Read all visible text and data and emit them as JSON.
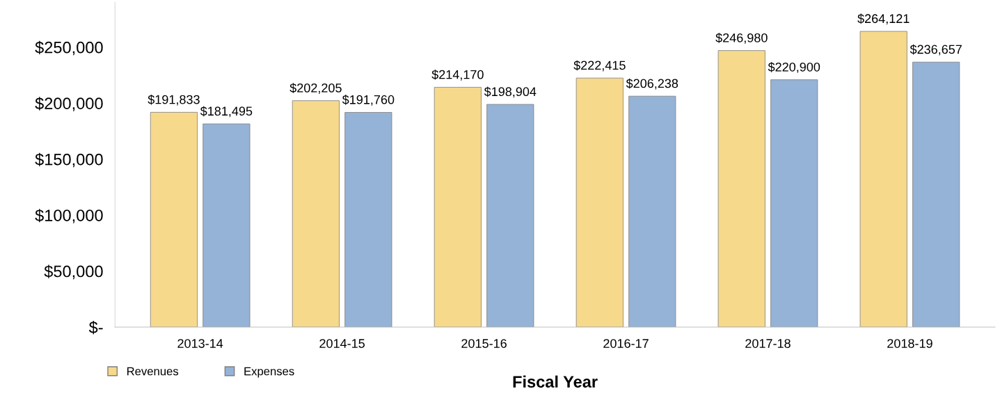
{
  "chart_data": {
    "type": "bar",
    "xlabel": "Fiscal Year",
    "categories": [
      "2013-14",
      "2014-15",
      "2015-16",
      "2016-17",
      "2017-18",
      "2018-19"
    ],
    "series": [
      {
        "name": "Revenues",
        "color": "#f7d98c",
        "values": [
          191833,
          202205,
          214170,
          222415,
          246980,
          264121
        ],
        "value_labels": [
          "$191,833",
          "$202,205",
          "$214,170",
          "$222,415",
          "$246,980",
          "$264,121"
        ]
      },
      {
        "name": "Expenses",
        "color": "#95b3d7",
        "values": [
          181495,
          191760,
          198904,
          206238,
          220900,
          236657
        ],
        "value_labels": [
          "$181,495",
          "$191,760",
          "$198,904",
          "$206,238",
          "$220,900",
          "$236,657"
        ]
      }
    ],
    "ylim": [
      0,
      290000
    ],
    "yticks": [
      {
        "value": 0,
        "label": "$-"
      },
      {
        "value": 50000,
        "label": "$50,000"
      },
      {
        "value": 100000,
        "label": "$100,000"
      },
      {
        "value": 150000,
        "label": "$150,000"
      },
      {
        "value": 200000,
        "label": "$200,000"
      },
      {
        "value": 250000,
        "label": "$250,000"
      }
    ],
    "grid": false,
    "legend": "bottom left"
  }
}
